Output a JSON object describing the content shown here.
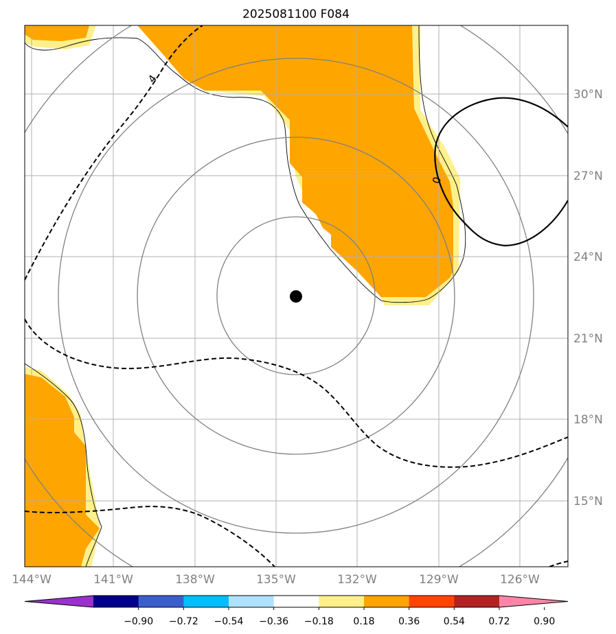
{
  "title": "2025081100 F084",
  "map": {
    "lon_ticks": [
      "144°W",
      "141°W",
      "138°W",
      "135°W",
      "132°W",
      "129°W",
      "126°W"
    ],
    "lat_ticks": [
      "30°N",
      "27°N",
      "24°N",
      "21°N",
      "18°N",
      "15°N"
    ],
    "center_marker": "storm-center",
    "range_rings": 4,
    "contour_labels": [
      "4",
      "0"
    ],
    "shading_color": "#ffa500",
    "shading_edge_color": "#fff08c"
  },
  "colorbar": {
    "labels": [
      "−0.90",
      "−0.72",
      "−0.54",
      "−0.36",
      "−0.18",
      "0.18",
      "0.36",
      "0.54",
      "0.72",
      "0.90"
    ],
    "colors": [
      "#9932cc",
      "#00008b",
      "#3a5fcd",
      "#00bfff",
      "#b0e2ff",
      "#ffffff",
      "#fff08c",
      "#ffa500",
      "#ff4500",
      "#b22222",
      "#ff85a8"
    ]
  }
}
